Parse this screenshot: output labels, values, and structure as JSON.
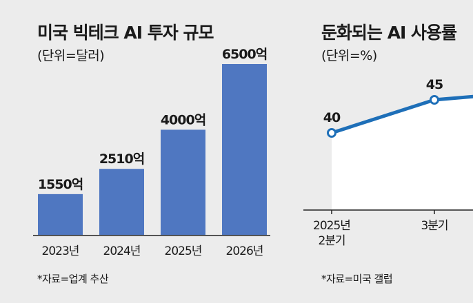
{
  "chart_data": [
    {
      "type": "bar",
      "title": "미국 빅테크 AI 투자 규모",
      "unit": "(단위=달러)",
      "categories": [
        "2023년",
        "2024년",
        "2025년",
        "2026년"
      ],
      "values": [
        1550,
        2510,
        4000,
        6500
      ],
      "value_labels": [
        "1550억",
        "2510억",
        "4000억",
        "6500억"
      ],
      "ylim": [
        0,
        6500
      ],
      "bar_color": "#4f77c1",
      "source": "*자료=업계 추산"
    },
    {
      "type": "line",
      "title": "둔화되는 AI 사용률",
      "unit": "(단위=%)",
      "categories": [
        "2025년\n2분기",
        "3분기"
      ],
      "values": [
        40,
        45
      ],
      "line_color": "#1e6fb8",
      "area_color": "#ffffff",
      "source": "*자료=미국 갤럽"
    }
  ]
}
